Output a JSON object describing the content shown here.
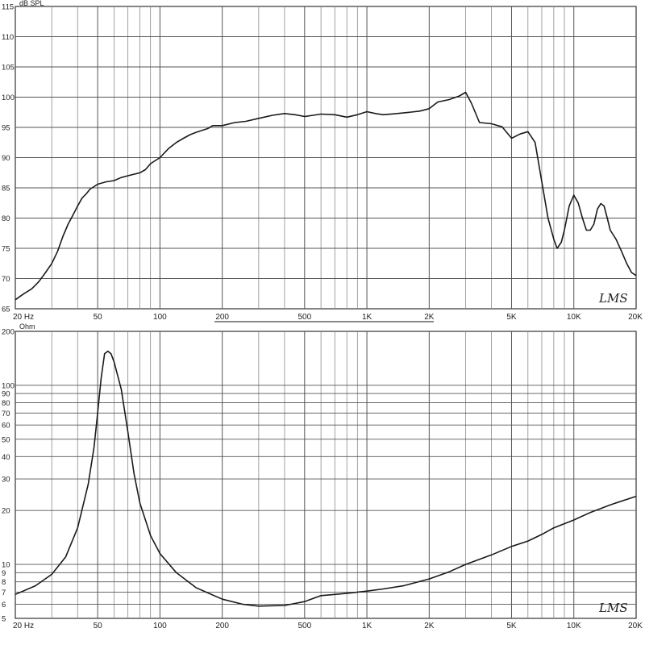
{
  "chart_data": [
    {
      "type": "line",
      "panel": "spl",
      "unit_label": "dB SPL",
      "x_scale": "log",
      "xlim": [
        20,
        20000
      ],
      "ylim": [
        65,
        115
      ],
      "y_ticks": [
        65,
        70,
        75,
        80,
        85,
        90,
        95,
        100,
        105,
        110,
        115
      ],
      "x_tick_labels": [
        {
          "value": 20,
          "label": "20  Hz"
        },
        {
          "value": 50,
          "label": "50"
        },
        {
          "value": 100,
          "label": "100"
        },
        {
          "value": 200,
          "label": "200"
        },
        {
          "value": 500,
          "label": "500"
        },
        {
          "value": 1000,
          "label": "1K"
        },
        {
          "value": 2000,
          "label": "2K"
        },
        {
          "value": 5000,
          "label": "5K"
        },
        {
          "value": 10000,
          "label": "10K"
        },
        {
          "value": 20000,
          "label": "20K"
        }
      ],
      "grid": true,
      "watermark": "LMS",
      "series": [
        {
          "color": "#1a1a1a",
          "points": [
            [
              20,
              66.5
            ],
            [
              22,
              67.5
            ],
            [
              24,
              68.3
            ],
            [
              26,
              69.5
            ],
            [
              28,
              71
            ],
            [
              30,
              72.5
            ],
            [
              32,
              74.5
            ],
            [
              34,
              77
            ],
            [
              36,
              79
            ],
            [
              38,
              80.5
            ],
            [
              40,
              82
            ],
            [
              42,
              83.3
            ],
            [
              44,
              84
            ],
            [
              46,
              84.8
            ],
            [
              48,
              85.2
            ],
            [
              50,
              85.6
            ],
            [
              55,
              86
            ],
            [
              60,
              86.2
            ],
            [
              65,
              86.7
            ],
            [
              70,
              87
            ],
            [
              80,
              87.5
            ],
            [
              85,
              88
            ],
            [
              90,
              89
            ],
            [
              100,
              90
            ],
            [
              110,
              91.5
            ],
            [
              120,
              92.5
            ],
            [
              130,
              93.2
            ],
            [
              140,
              93.8
            ],
            [
              150,
              94.2
            ],
            [
              170,
              94.8
            ],
            [
              180,
              95.3
            ],
            [
              200,
              95.3
            ],
            [
              230,
              95.8
            ],
            [
              260,
              96
            ],
            [
              300,
              96.5
            ],
            [
              350,
              97
            ],
            [
              400,
              97.3
            ],
            [
              450,
              97.1
            ],
            [
              500,
              96.8
            ],
            [
              550,
              97
            ],
            [
              600,
              97.2
            ],
            [
              700,
              97.1
            ],
            [
              800,
              96.7
            ],
            [
              900,
              97.1
            ],
            [
              1000,
              97.6
            ],
            [
              1100,
              97.3
            ],
            [
              1200,
              97.1
            ],
            [
              1400,
              97.3
            ],
            [
              1600,
              97.5
            ],
            [
              1800,
              97.7
            ],
            [
              2000,
              98.1
            ],
            [
              2200,
              99.2
            ],
            [
              2500,
              99.6
            ],
            [
              2800,
              100.2
            ],
            [
              3000,
              100.8
            ],
            [
              3200,
              99
            ],
            [
              3500,
              95.8
            ],
            [
              4000,
              95.6
            ],
            [
              4500,
              95.1
            ],
            [
              5000,
              93.2
            ],
            [
              5500,
              93.9
            ],
            [
              6000,
              94.3
            ],
            [
              6500,
              92.5
            ],
            [
              7000,
              86
            ],
            [
              7500,
              80
            ],
            [
              8000,
              76.5
            ],
            [
              8300,
              75
            ],
            [
              8700,
              76
            ],
            [
              9000,
              78
            ],
            [
              9500,
              82
            ],
            [
              10000,
              83.8
            ],
            [
              10500,
              82.5
            ],
            [
              11000,
              80
            ],
            [
              11500,
              78
            ],
            [
              12000,
              78
            ],
            [
              12500,
              79
            ],
            [
              13000,
              81.5
            ],
            [
              13500,
              82.4
            ],
            [
              14000,
              82
            ],
            [
              14500,
              80
            ],
            [
              15000,
              78
            ],
            [
              16000,
              76.5
            ],
            [
              17000,
              74.5
            ],
            [
              18000,
              72.5
            ],
            [
              19000,
              71
            ],
            [
              20000,
              70.5
            ]
          ]
        }
      ]
    },
    {
      "type": "line",
      "panel": "impedance",
      "unit_label": "Ohm",
      "x_scale": "log",
      "y_scale": "log",
      "xlim": [
        20,
        20000
      ],
      "ylim": [
        5,
        200
      ],
      "y_ticks": [
        5,
        6,
        7,
        8,
        9,
        10,
        20,
        30,
        40,
        50,
        60,
        70,
        80,
        90,
        100,
        200
      ],
      "x_tick_labels": [
        {
          "value": 20,
          "label": "20  Hz"
        },
        {
          "value": 50,
          "label": "50"
        },
        {
          "value": 100,
          "label": "100"
        },
        {
          "value": 200,
          "label": "200"
        },
        {
          "value": 500,
          "label": "500"
        },
        {
          "value": 1000,
          "label": "1K"
        },
        {
          "value": 2000,
          "label": "2K"
        },
        {
          "value": 5000,
          "label": "5K"
        },
        {
          "value": 10000,
          "label": "10K"
        },
        {
          "value": 20000,
          "label": "20K"
        }
      ],
      "grid": true,
      "watermark": "LMS",
      "series": [
        {
          "color": "#1a1a1a",
          "points": [
            [
              20,
              6.8
            ],
            [
              25,
              7.6
            ],
            [
              30,
              8.8
            ],
            [
              35,
              11
            ],
            [
              40,
              16
            ],
            [
              45,
              28
            ],
            [
              48,
              45
            ],
            [
              50,
              70
            ],
            [
              52,
              110
            ],
            [
              54,
              150
            ],
            [
              56,
              155
            ],
            [
              58,
              150
            ],
            [
              60,
              135
            ],
            [
              65,
              95
            ],
            [
              70,
              55
            ],
            [
              75,
              32
            ],
            [
              80,
              22
            ],
            [
              90,
              14.5
            ],
            [
              100,
              11.5
            ],
            [
              120,
              9
            ],
            [
              150,
              7.4
            ],
            [
              200,
              6.4
            ],
            [
              250,
              6
            ],
            [
              300,
              5.85
            ],
            [
              400,
              5.9
            ],
            [
              500,
              6.2
            ],
            [
              600,
              6.7
            ],
            [
              700,
              6.8
            ],
            [
              800,
              6.9
            ],
            [
              1000,
              7.1
            ],
            [
              1200,
              7.3
            ],
            [
              1500,
              7.6
            ],
            [
              2000,
              8.3
            ],
            [
              2500,
              9.1
            ],
            [
              3000,
              10
            ],
            [
              4000,
              11.3
            ],
            [
              5000,
              12.6
            ],
            [
              6000,
              13.5
            ],
            [
              7000,
              14.7
            ],
            [
              8000,
              16
            ],
            [
              10000,
              17.7
            ],
            [
              12000,
              19.5
            ],
            [
              15000,
              21.5
            ],
            [
              20000,
              24
            ]
          ]
        }
      ]
    }
  ]
}
